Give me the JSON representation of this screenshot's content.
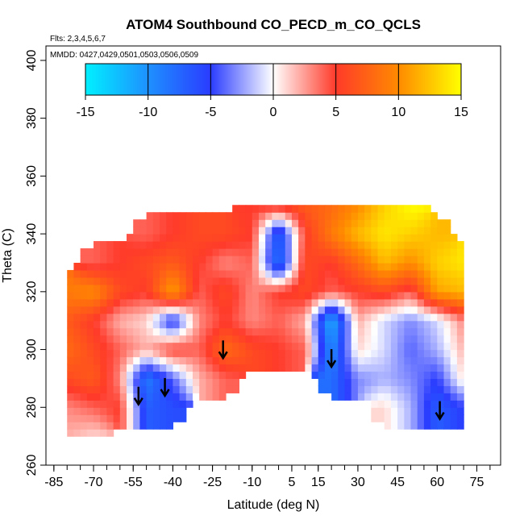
{
  "chart_data": {
    "type": "heatmap",
    "title": "ATOM4 Southbound CO_PECD_m_CO_QCLS",
    "subtitle_flights": "Flts: 2,3,4,5,6,7",
    "subtitle_dates": "MMDD: 0427,0429,0501,0503,0506,0509",
    "xlabel": "Latitude (deg N)",
    "ylabel": "Theta (C)",
    "xlim": [
      -88,
      84
    ],
    "ylim": [
      260,
      405
    ],
    "x_ticks": [
      "-85",
      "-70",
      "-55",
      "-40",
      "-25",
      "-10",
      "5",
      "15",
      "30",
      "45",
      "60",
      "75"
    ],
    "x_tick_values": [
      -85,
      -70,
      -55,
      -40,
      -25,
      -10,
      5,
      15,
      30,
      45,
      60,
      75
    ],
    "x_minor_tick_step": 5,
    "y_ticks": [
      "260",
      "280",
      "300",
      "320",
      "340",
      "360",
      "380",
      "400"
    ],
    "y_tick_values": [
      260,
      280,
      300,
      320,
      340,
      360,
      380,
      400
    ],
    "colorbar": {
      "min": -15,
      "max": 15,
      "ticks": [
        "-15",
        "-10",
        "-5",
        "0",
        "5",
        "10",
        "15"
      ],
      "tick_values": [
        -15,
        -10,
        -5,
        0,
        5,
        10,
        15
      ],
      "colors": [
        "#00f0ff",
        "#1e90ff",
        "#2a3cff",
        "#ffffff",
        "#ff3a2a",
        "#ff8a00",
        "#ffff00"
      ]
    },
    "arrows_latitude": [
      -53,
      -43,
      -21,
      20,
      61
    ],
    "arrows_theta_tip": [
      281,
      284,
      297,
      294,
      276
    ],
    "field": {
      "lat": [
        -80,
        -70,
        -60,
        -50,
        -40,
        -30,
        -20,
        -10,
        0,
        10,
        20,
        30,
        40,
        50,
        60,
        70
      ],
      "theta": [
        270,
        280,
        290,
        300,
        310,
        320,
        330,
        340,
        350
      ],
      "values": [
        [
          2,
          1,
          null,
          null,
          null,
          null,
          null,
          null,
          null,
          null,
          null,
          null,
          null,
          null,
          null,
          null
        ],
        [
          3,
          4,
          5,
          -7,
          -6,
          null,
          null,
          null,
          null,
          null,
          null,
          null,
          1,
          -2,
          -7,
          -5
        ],
        [
          6,
          7,
          3,
          -9,
          -4,
          2,
          4,
          null,
          null,
          null,
          -8,
          -3,
          -2,
          -3,
          -5,
          1
        ],
        [
          8,
          6,
          4,
          2,
          5,
          4,
          8,
          6,
          5,
          4,
          -10,
          1,
          -1,
          -4,
          -2,
          2
        ],
        [
          7,
          5,
          2,
          1,
          -6,
          3,
          5,
          3,
          4,
          2,
          -12,
          2,
          -1,
          -3,
          -1,
          3
        ],
        [
          9,
          10,
          6,
          5,
          11,
          4,
          6,
          3,
          5,
          6,
          4,
          5,
          6,
          4,
          11,
          12
        ],
        [
          null,
          4,
          5,
          6,
          7,
          5,
          3,
          4,
          -9,
          6,
          5,
          8,
          12,
          10,
          13,
          14
        ],
        [
          null,
          null,
          null,
          4,
          5,
          6,
          6,
          5,
          -8,
          5,
          9,
          12,
          14,
          13,
          12,
          null
        ],
        [
          null,
          null,
          null,
          null,
          null,
          null,
          null,
          5,
          6,
          7,
          8,
          10,
          13,
          15,
          null,
          null
        ]
      ]
    }
  }
}
